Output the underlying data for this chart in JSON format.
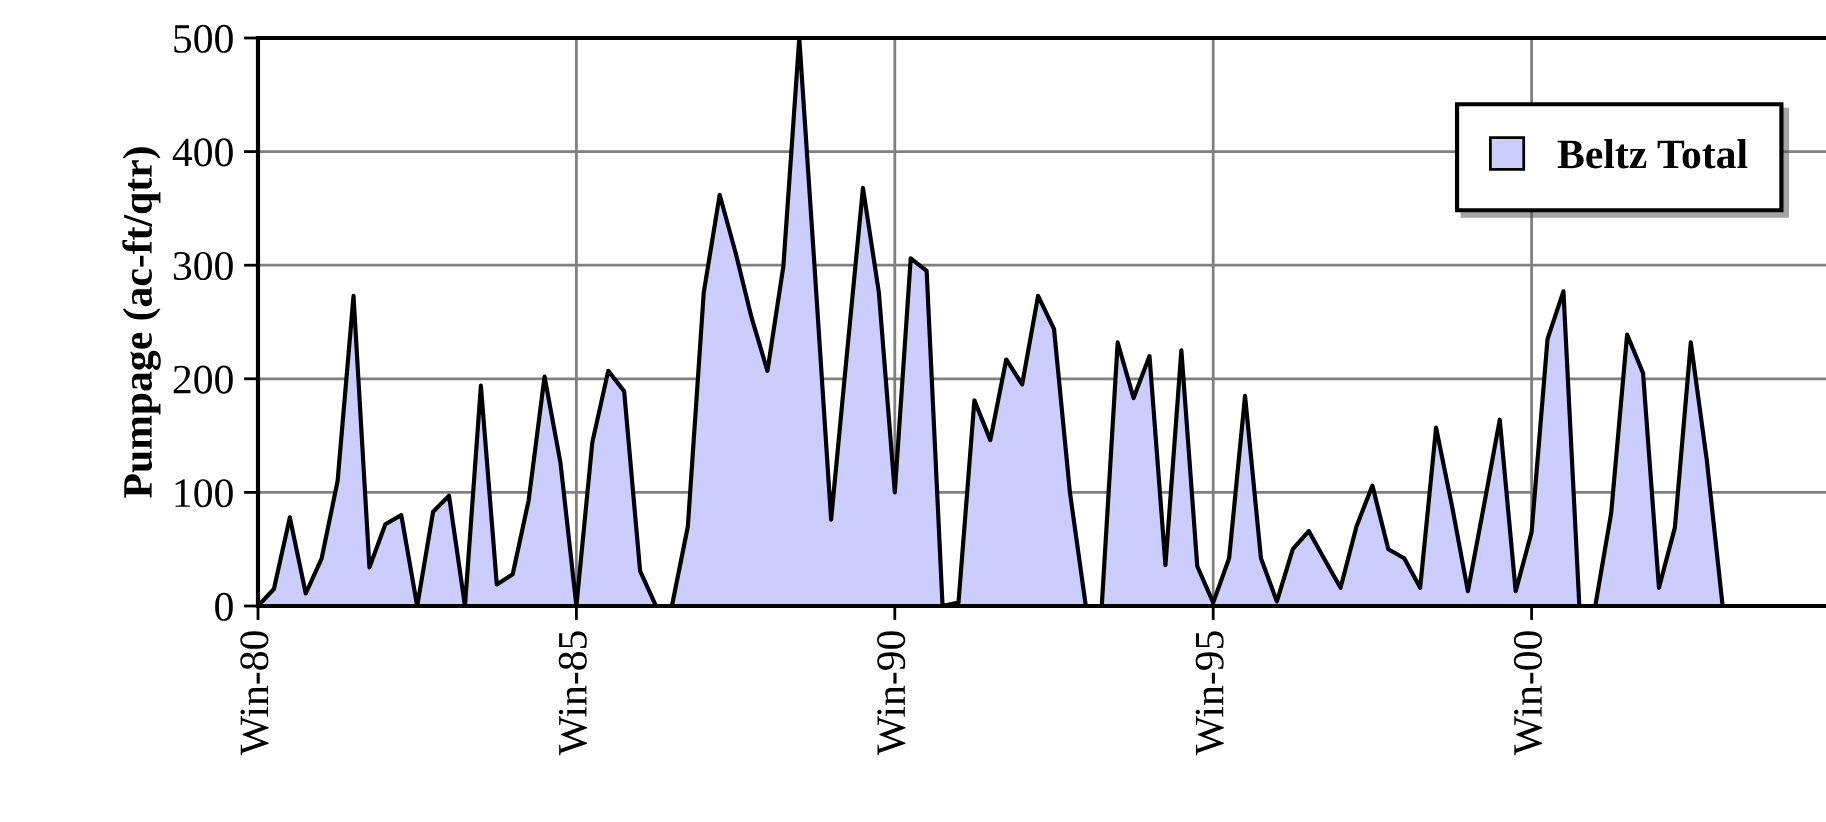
{
  "chart_data": {
    "type": "area",
    "ylabel": "Pumpage (ac-ft/qtr)",
    "categories": [
      "Win-80",
      null,
      null,
      null,
      null,
      null,
      null,
      null,
      null,
      null,
      null,
      null,
      null,
      null,
      null,
      null,
      null,
      null,
      null,
      null,
      "Win-85",
      null,
      null,
      null,
      null,
      null,
      null,
      null,
      null,
      null,
      null,
      null,
      null,
      null,
      null,
      null,
      null,
      null,
      null,
      null,
      "Win-90",
      null,
      null,
      null,
      null,
      null,
      null,
      null,
      null,
      null,
      null,
      null,
      null,
      null,
      null,
      null,
      null,
      null,
      null,
      null,
      "Win-95",
      null,
      null,
      null,
      null,
      null,
      null,
      null,
      null,
      null,
      null,
      null,
      null,
      null,
      null,
      null,
      null,
      null,
      null,
      null,
      "Win-00",
      null,
      null,
      null,
      null,
      null,
      null,
      null,
      null,
      null,
      null,
      null,
      null,
      null,
      null,
      null,
      null,
      null,
      null,
      null,
      null
    ],
    "series": [
      {
        "name": "Beltz Total",
        "color": "#ccccff",
        "values": [
          0,
          15,
          78,
          11,
          42,
          110,
          273,
          34,
          72,
          80,
          0,
          83,
          97,
          0,
          194,
          19,
          28,
          93,
          202,
          126,
          0,
          144,
          207,
          189,
          31,
          0,
          0,
          70,
          276,
          362,
          311,
          254,
          207,
          299,
          500,
          290,
          76,
          223,
          368,
          276,
          100,
          306,
          295,
          0,
          3,
          181,
          146,
          217,
          195,
          273,
          244,
          100,
          0,
          0,
          232,
          183,
          220,
          36,
          225,
          35,
          3,
          42,
          185,
          42,
          4,
          50,
          66,
          41,
          16,
          70,
          106,
          50,
          42,
          16,
          157,
          88,
          13,
          88,
          164,
          13,
          65,
          235,
          277,
          0,
          0,
          82,
          239,
          205,
          16,
          69,
          232,
          129,
          0,
          null,
          null,
          null,
          null,
          null,
          null,
          null,
          null
        ]
      }
    ],
    "ylim": [
      0,
      500
    ],
    "yticks": [
      0,
      100,
      200,
      300,
      400,
      500
    ],
    "grid": true,
    "legend": "top right"
  }
}
